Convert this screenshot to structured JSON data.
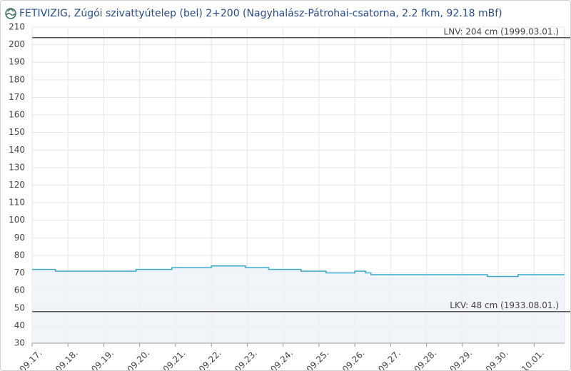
{
  "chart_data": {
    "type": "line",
    "title": "FETIVIZIG, Zúgói szivattyútelep (bel) 2+200 (Nagyhalász-Pátrohai-csatorna, 2.2 fkm, 92.18 mBf)",
    "x": [
      0,
      0.65,
      0.65,
      2.9,
      2.9,
      3.9,
      3.9,
      5.0,
      5.0,
      5.95,
      5.95,
      6.6,
      6.6,
      7.5,
      7.5,
      8.2,
      8.2,
      9.0,
      9.0,
      9.3,
      9.3,
      9.45,
      9.45,
      9.6,
      9.6,
      12.7,
      12.7,
      13.55,
      13.55,
      14.85
    ],
    "values": [
      72,
      72,
      71,
      71,
      72,
      72,
      73,
      73,
      74,
      74,
      73,
      73,
      72,
      72,
      71,
      71,
      70,
      70,
      71,
      71,
      70,
      70,
      69,
      69,
      69,
      69,
      68,
      68,
      69,
      69
    ],
    "color": "#3aa8c9",
    "xlim": [
      0,
      14.85
    ],
    "xticks": [
      {
        "value": 0,
        "label": "09.17."
      },
      {
        "value": 1,
        "label": "09.18."
      },
      {
        "value": 2,
        "label": "09.19."
      },
      {
        "value": 3,
        "label": "09.20."
      },
      {
        "value": 4,
        "label": "09.21."
      },
      {
        "value": 5,
        "label": "09.22."
      },
      {
        "value": 6,
        "label": "09.23."
      },
      {
        "value": 7,
        "label": "09.24."
      },
      {
        "value": 8,
        "label": "09.25."
      },
      {
        "value": 9,
        "label": "09.26."
      },
      {
        "value": 10,
        "label": "09.27."
      },
      {
        "value": 11,
        "label": "09.28."
      },
      {
        "value": 12,
        "label": "09.29."
      },
      {
        "value": 13,
        "label": "09.30."
      },
      {
        "value": 14,
        "label": "10.01."
      }
    ],
    "ylim": [
      30,
      210
    ],
    "yticks": [
      30,
      40,
      50,
      60,
      70,
      80,
      90,
      100,
      110,
      120,
      130,
      140,
      150,
      160,
      170,
      180,
      190,
      200,
      210
    ],
    "grid": true,
    "reference_lines": [
      {
        "value": 204,
        "label": "LNV: 204 cm (1999.03.01.)"
      },
      {
        "value": 48,
        "label": "LKV: 48 cm (1933.08.01.)"
      }
    ]
  }
}
